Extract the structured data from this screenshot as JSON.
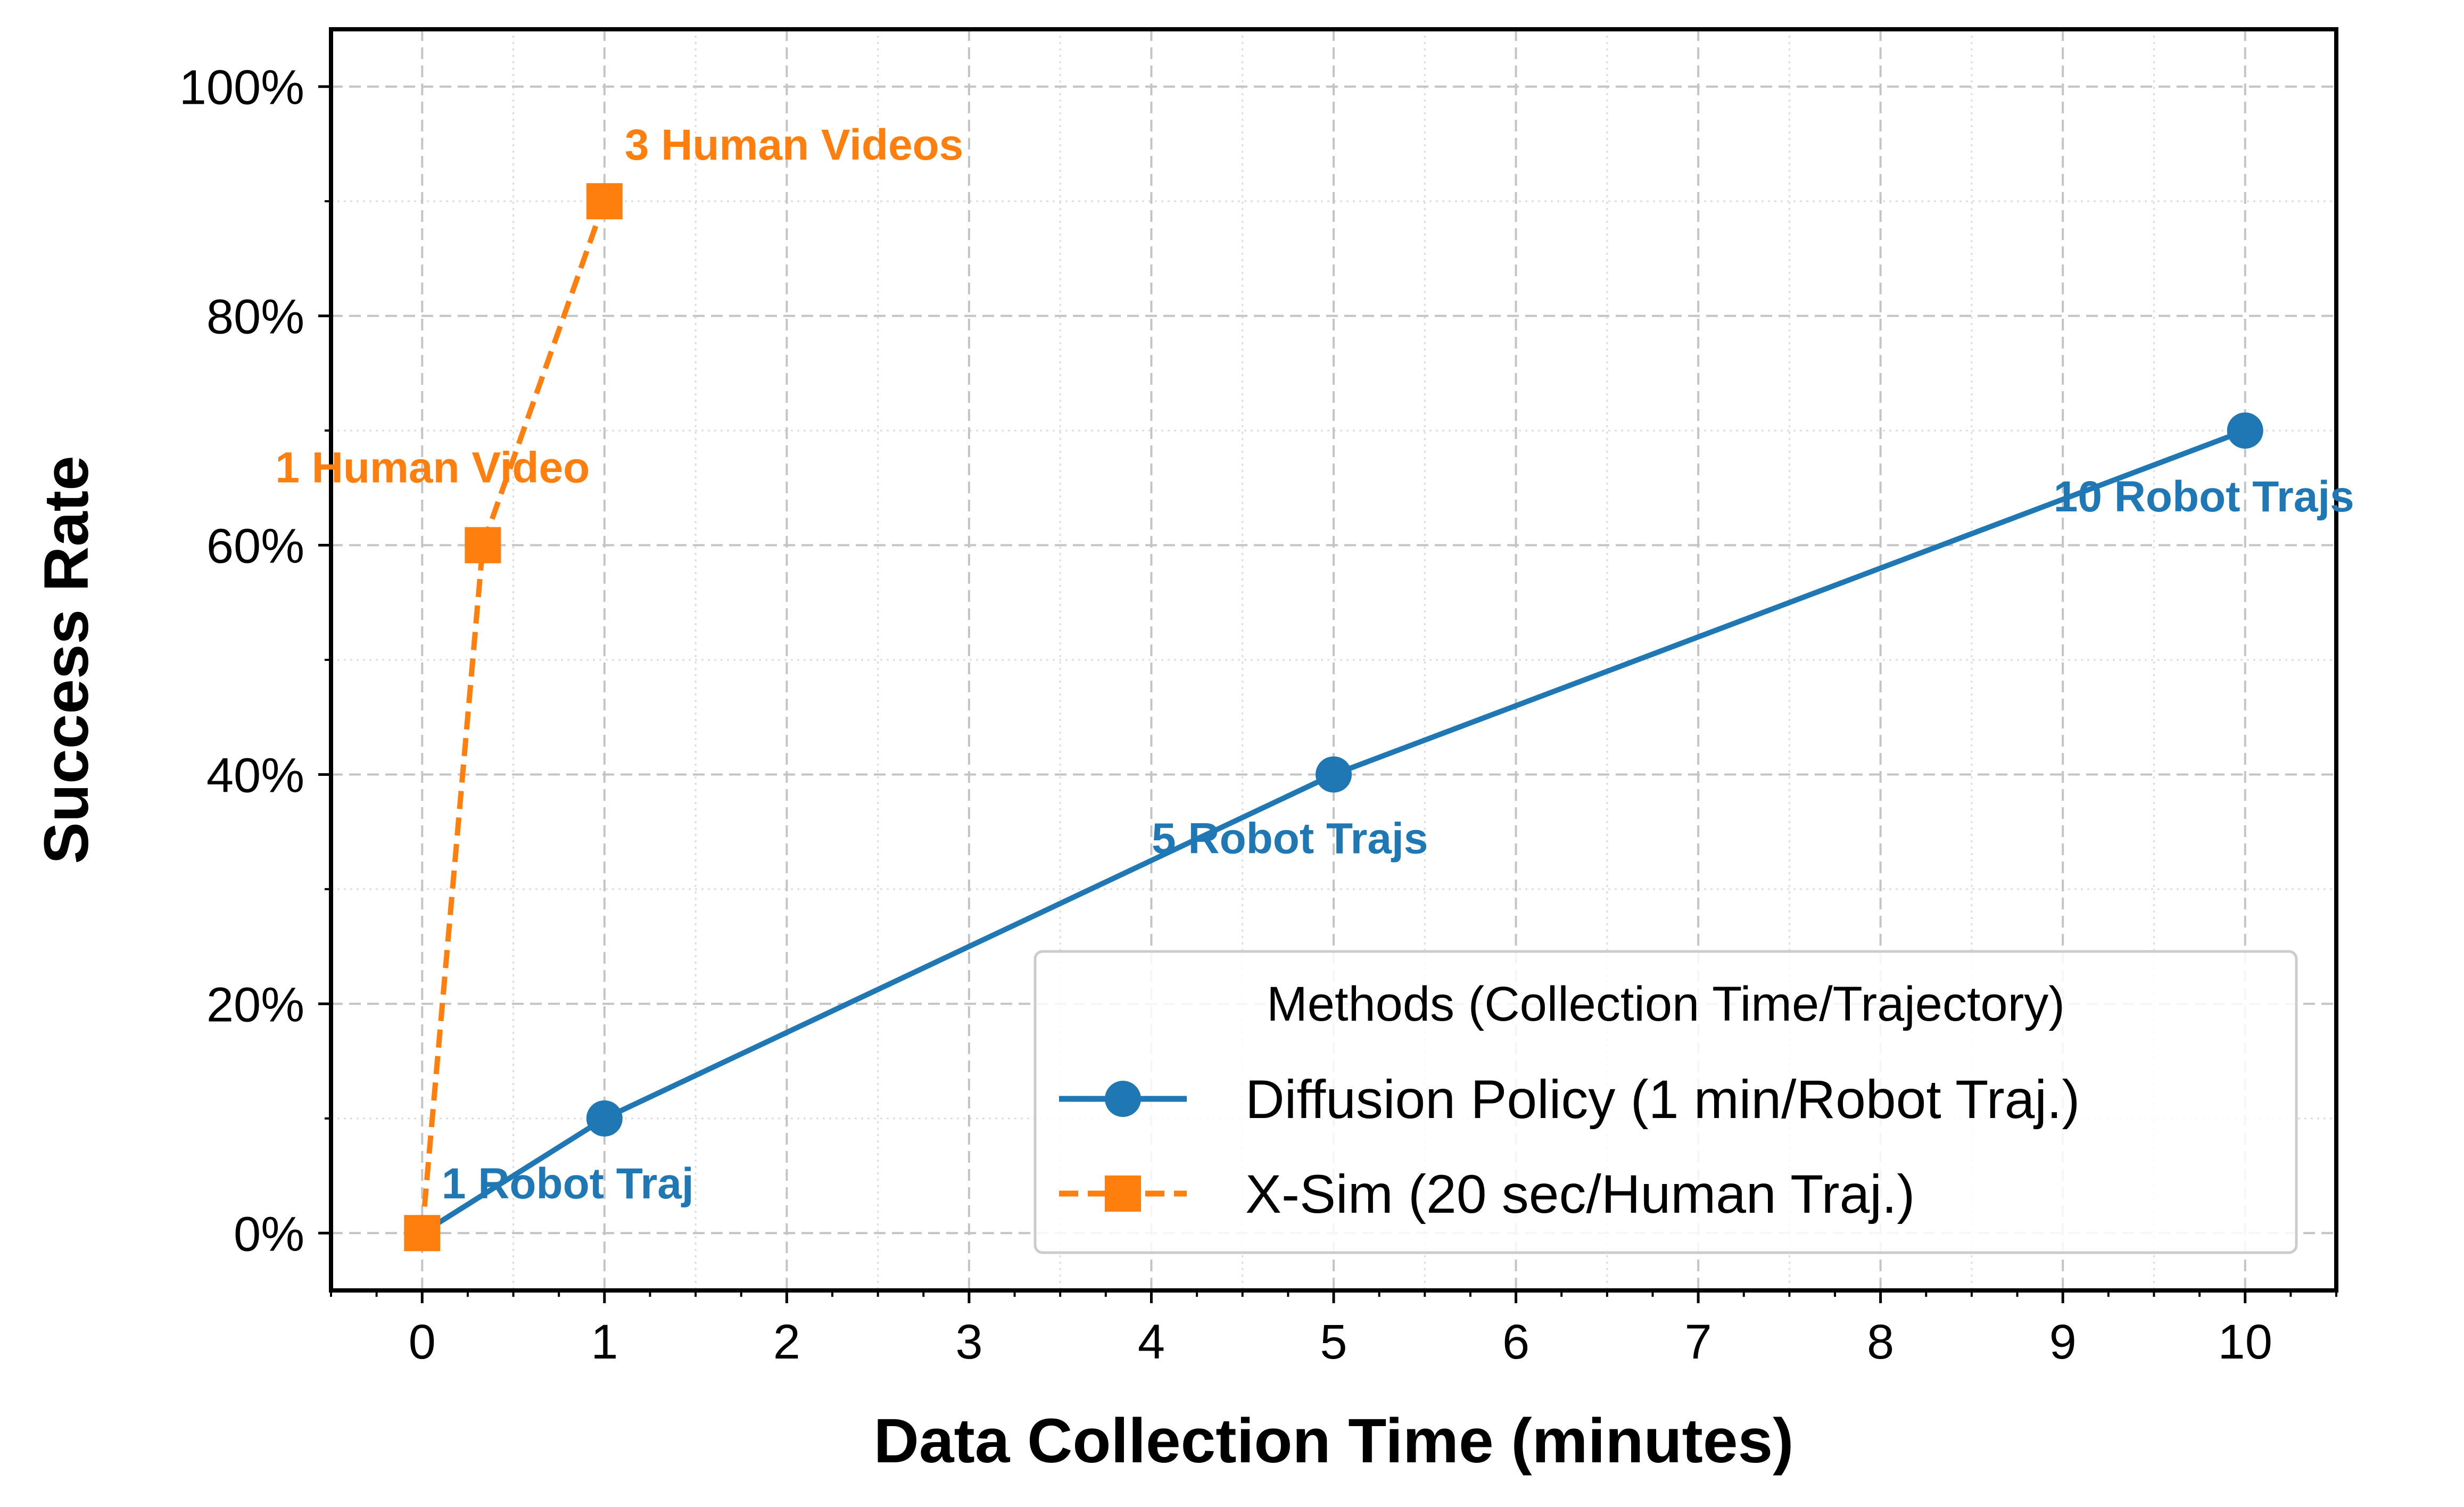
{
  "chart_data": {
    "type": "line",
    "xlabel": "Data Collection Time (minutes)",
    "ylabel": "Success Rate",
    "xlim": [
      -0.5,
      10.5
    ],
    "ylim": [
      -5,
      105
    ],
    "x_ticks": [
      0,
      1,
      2,
      3,
      4,
      5,
      6,
      7,
      8,
      9,
      10
    ],
    "x_tick_labels": [
      "0",
      "1",
      "2",
      "3",
      "4",
      "5",
      "6",
      "7",
      "8",
      "9",
      "10"
    ],
    "y_ticks": [
      0,
      20,
      40,
      60,
      80,
      100
    ],
    "y_tick_labels": [
      "0%",
      "20%",
      "40%",
      "60%",
      "80%",
      "100%"
    ],
    "grid": true,
    "legend": {
      "title": "Methods (Collection Time/Trajectory)",
      "position": "lower-right"
    },
    "series": [
      {
        "name": "Diffusion Policy (1 min/Robot Traj.)",
        "color": "#1f77b4",
        "line_style": "solid",
        "marker": "circle",
        "x": [
          0,
          1,
          5,
          10
        ],
        "y": [
          0,
          10,
          40,
          70
        ],
        "point_labels": [
          "",
          "1 Robot Traj",
          "5 Robot Trajs",
          "10 Robot Trajs"
        ]
      },
      {
        "name": "X-Sim (20 sec/Human Traj.)",
        "color": "#ff7f0e",
        "line_style": "dashed",
        "marker": "square",
        "x": [
          0,
          0.333,
          1
        ],
        "y": [
          0,
          60,
          90
        ],
        "point_labels": [
          "",
          "1 Human Video",
          "3 Human Videos"
        ]
      }
    ]
  }
}
